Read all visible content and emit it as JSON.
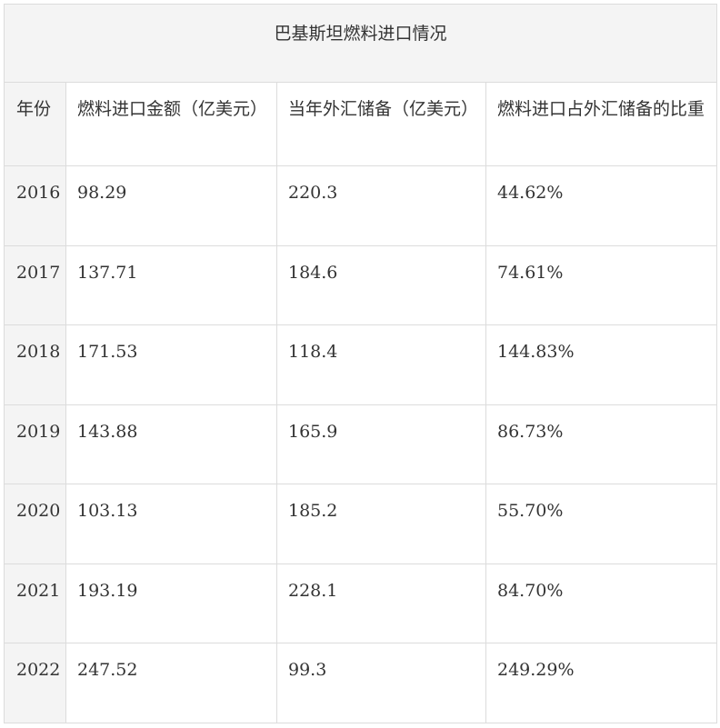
{
  "table": {
    "title": "巴基斯坦燃料进口情况",
    "headers": [
      "年份",
      "燃料进口金额（亿美元）",
      "当年外汇储备（亿美元）",
      "燃料进口占外汇储备的比重"
    ],
    "rows": [
      {
        "year": "2016",
        "fuel_import": "98.29",
        "reserve": "220.3",
        "ratio": "44.62%"
      },
      {
        "year": "2017",
        "fuel_import": "137.71",
        "reserve": "184.6",
        "ratio": "74.61%"
      },
      {
        "year": "2018",
        "fuel_import": "171.53",
        "reserve": "118.4",
        "ratio": "144.83%"
      },
      {
        "year": "2019",
        "fuel_import": "143.88",
        "reserve": "165.9",
        "ratio": "86.73%"
      },
      {
        "year": "2020",
        "fuel_import": "103.13",
        "reserve": "185.2",
        "ratio": "55.70%"
      },
      {
        "year": "2021",
        "fuel_import": "193.19",
        "reserve": "228.1",
        "ratio": "84.70%"
      },
      {
        "year": "2022",
        "fuel_import": "247.52",
        "reserve": "99.3",
        "ratio": "249.29%"
      }
    ]
  }
}
